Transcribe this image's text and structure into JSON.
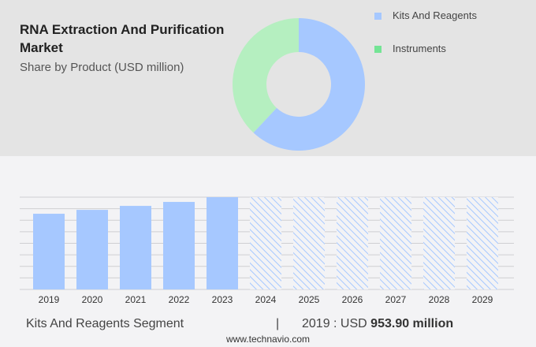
{
  "header": {
    "title": "RNA Extraction And Purification Market",
    "subtitle": "Share by Product (USD million)"
  },
  "chart_data": [
    {
      "type": "pie",
      "subtype": "donut",
      "title": "Share by Product (USD million)",
      "slices": [
        {
          "name": "Kits And Reagents",
          "share_pct": 62,
          "color": "#a6c8ff"
        },
        {
          "name": "Instruments",
          "share_pct": 38,
          "color": "#b5efc0"
        }
      ],
      "legend_colors": [
        "#a6c8ff",
        "#74e495"
      ],
      "legend": "right"
    },
    {
      "type": "bar",
      "categories": [
        "2019",
        "2020",
        "2021",
        "2022",
        "2023",
        "2024",
        "2025",
        "2026",
        "2027",
        "2028",
        "2029"
      ],
      "values": [
        953.9,
        1003,
        1053,
        1103,
        1163,
        null,
        null,
        null,
        null,
        null,
        null
      ],
      "forecast_categories": [
        "2024",
        "2025",
        "2026",
        "2027",
        "2028",
        "2029"
      ],
      "color": "#a6c8ff",
      "ylim": [
        0,
        1163
      ],
      "grid": true
    }
  ],
  "footer": {
    "segment": "Kits And Reagents Segment",
    "separator": "|",
    "year_label": "2019 : USD",
    "value": "953.90 million",
    "site": "www.technavio.com"
  }
}
